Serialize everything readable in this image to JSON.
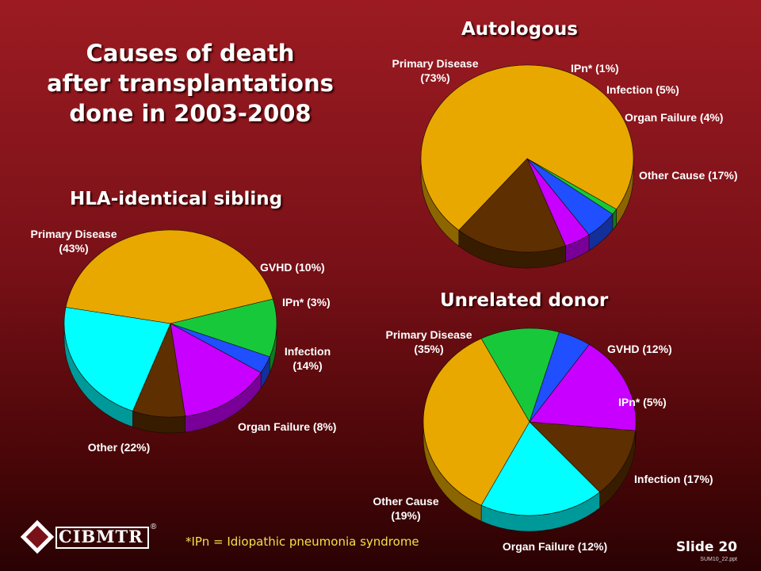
{
  "slide": {
    "title_lines": [
      "Causes of death",
      "after transplantations",
      "done in 2003-2008"
    ],
    "footnote": "*IPn = Idiopathic pneumonia syndrome",
    "slide_number": "Slide 20",
    "file_ref": "SUM10_22.ppt",
    "logo_text": "CIBMTR",
    "logo_mark": "®"
  },
  "chart_data": [
    {
      "type": "pie",
      "title": "HLA-identical sibling",
      "slices": [
        {
          "label": "Primary Disease (43%)",
          "label_lines": [
            "Primary Disease",
            "(43%)"
          ],
          "value": 43,
          "color": "#e8a800"
        },
        {
          "label": "GVHD (10%)",
          "label_lines": [
            "GVHD (10%)"
          ],
          "value": 10,
          "color": "#17c93a"
        },
        {
          "label": "IPn* (3%)",
          "label_lines": [
            "IPn* (3%)"
          ],
          "value": 3,
          "color": "#1f4fff"
        },
        {
          "label": "Infection (14%)",
          "label_lines": [
            "Infection",
            "(14%)"
          ],
          "value": 14,
          "color": "#c800ff"
        },
        {
          "label": "Organ Failure (8%)",
          "label_lines": [
            "Organ Failure (8%)"
          ],
          "value": 8,
          "color": "#5e2f00"
        },
        {
          "label": "Other (22%)",
          "label_lines": [
            "Other (22%)"
          ],
          "value": 22,
          "color": "#00ffff"
        }
      ]
    },
    {
      "type": "pie",
      "title": "Autologous",
      "slices": [
        {
          "label": "Primary Disease (73%)",
          "label_lines": [
            "Primary Disease",
            "(73%)"
          ],
          "value": 73,
          "color": "#e8a800"
        },
        {
          "label": "IPn* (1%)",
          "label_lines": [
            "IPn* (1%)"
          ],
          "value": 1,
          "color": "#17c93a"
        },
        {
          "label": "Infection (5%)",
          "label_lines": [
            "Infection (5%)"
          ],
          "value": 5,
          "color": "#1f4fff"
        },
        {
          "label": "Organ Failure (4%)",
          "label_lines": [
            "Organ Failure (4%)"
          ],
          "value": 4,
          "color": "#c800ff"
        },
        {
          "label": "Other Cause (17%)",
          "label_lines": [
            "Other Cause (17%)"
          ],
          "value": 17,
          "color": "#5e2f00"
        }
      ]
    },
    {
      "type": "pie",
      "title": "Unrelated donor",
      "slices": [
        {
          "label": "Primary Disease (35%)",
          "label_lines": [
            "Primary Disease",
            "(35%)"
          ],
          "value": 35,
          "color": "#e8a800"
        },
        {
          "label": "GVHD (12%)",
          "label_lines": [
            "GVHD (12%)"
          ],
          "value": 12,
          "color": "#17c93a"
        },
        {
          "label": "IPn* (5%)",
          "label_lines": [
            "IPn* (5%)"
          ],
          "value": 5,
          "color": "#1f4fff"
        },
        {
          "label": "Infection (17%)",
          "label_lines": [
            "Infection (17%)"
          ],
          "value": 17,
          "color": "#c800ff"
        },
        {
          "label": "Organ Failure (12%)",
          "label_lines": [
            "Organ Failure (12%)"
          ],
          "value": 12,
          "color": "#5e2f00"
        },
        {
          "label": "Other Cause (19%)",
          "label_lines": [
            "Other Cause",
            "(19%)"
          ],
          "value": 19,
          "color": "#00ffff"
        }
      ]
    }
  ]
}
